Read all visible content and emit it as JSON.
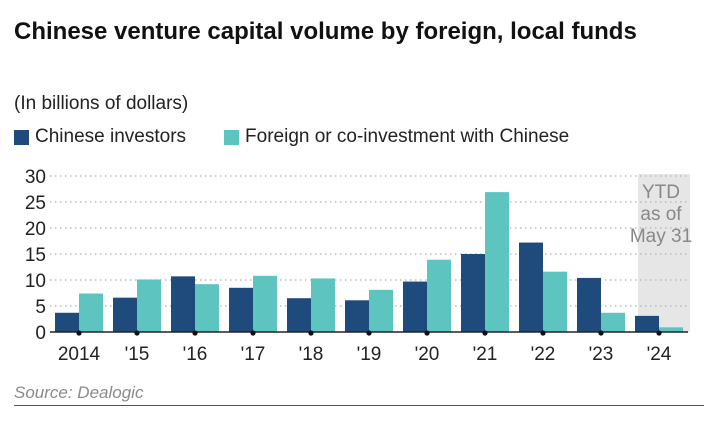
{
  "title": "Chinese venture capital volume by foreign, local funds",
  "subtitle": "(In billions of dollars)",
  "source": "Source: Dealogic",
  "colors": {
    "chinese": "#1f4a7c",
    "foreign": "#5ec4c0",
    "ytd_shade": "#e6e6e6",
    "grid": "#bbbbbb"
  },
  "chart_data": {
    "type": "bar",
    "categories": [
      "2014",
      "'15",
      "'16",
      "'17",
      "'18",
      "'19",
      "'20",
      "'21",
      "'22",
      "'23",
      "'24"
    ],
    "series": [
      {
        "name": "Chinese investors",
        "values": [
          3.7,
          6.6,
          10.7,
          8.5,
          6.5,
          6.1,
          9.7,
          15.0,
          17.2,
          10.4,
          3.1
        ]
      },
      {
        "name": "Foreign or co-investment with Chinese",
        "values": [
          7.4,
          10.1,
          9.2,
          10.8,
          10.3,
          8.1,
          13.9,
          26.9,
          11.6,
          3.7,
          0.9
        ]
      }
    ],
    "ylim": [
      0,
      30
    ],
    "yticks": [
      0,
      5,
      10,
      15,
      20,
      25,
      30
    ],
    "grid": true,
    "legend_position": "top-left",
    "annotation": {
      "category": "'24",
      "lines": [
        "YTD",
        "as of",
        "May 31"
      ]
    }
  }
}
